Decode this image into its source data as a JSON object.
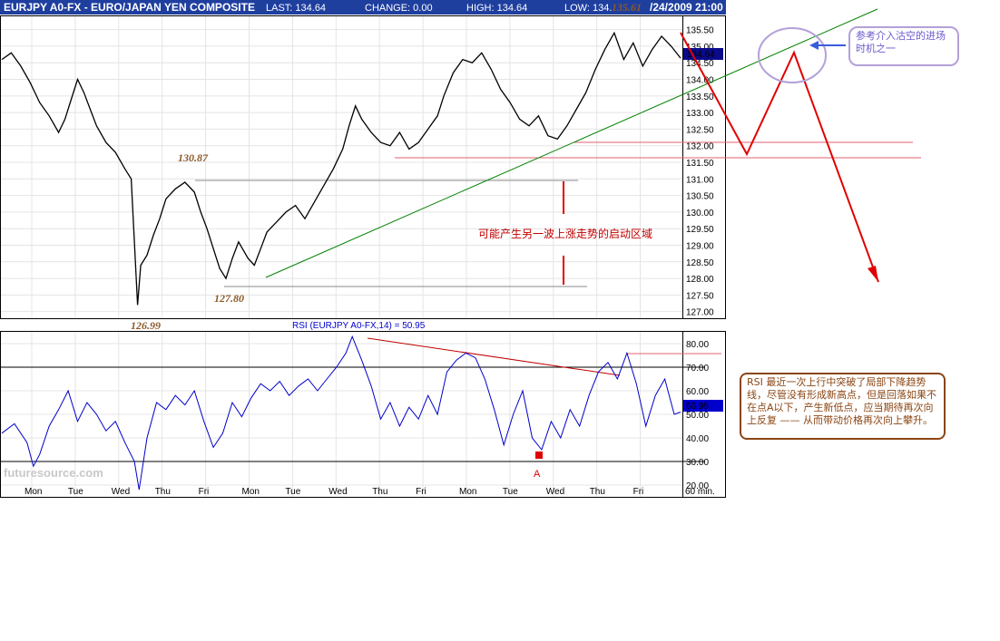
{
  "header": {
    "symbol": "EURJPY A0-FX - EURO/JAPAN YEN COMPOSITE",
    "last": "LAST: 134.64",
    "change": "CHANGE: 0.00",
    "high": "HIGH: 134.64",
    "low": "LOW: 134.",
    "peak": "135.61",
    "datetime": "/24/2009 21:00"
  },
  "price_panel": {
    "current_price": "134.64",
    "levels": {
      "high_label": "130.87",
      "mid_label": "127.80",
      "low_label": "126.99"
    },
    "note": "可能产生另一波上涨走势的启动区域"
  },
  "rsi_panel": {
    "title": "RSI (EURJPY A0-FX,14) = 50.95",
    "current_value": "50.95",
    "point_label": "A",
    "logo": "futuresource.com"
  },
  "annotations": {
    "rsi_note": "RSI 最近一次上行中突破了局部下降趋势线，尽管没有形成新高点，但是回落如果不在点A以下，产生新低点，应当期待再次向上反复 —— 从而带动价格再次向上攀升。",
    "entry_note": "参考介入沽空的进场时机之一"
  },
  "colors": {
    "header_bg": "#1f3f9f",
    "price_line": "#000000",
    "rsi_line": "#0000cc",
    "trend_line": "#008000",
    "resistance_line": "#e06070",
    "forecast_line": "#e00000",
    "current_badge": "#0a0a8a"
  },
  "chart_data": [
    {
      "type": "line",
      "name": "price",
      "x": [
        "Mon",
        "Tue",
        "Wed",
        "Thu",
        "Fri",
        "Mon",
        "Tue",
        "Wed",
        "Thu",
        "Fri",
        "Mon",
        "Tue",
        "Wed",
        "Thu",
        "Fri"
      ],
      "ylim": [
        126.8,
        135.9
      ],
      "yticks": [
        "135.50",
        "135.00",
        "134.50",
        "134.00",
        "133.50",
        "133.00",
        "132.50",
        "132.00",
        "131.50",
        "131.00",
        "130.50",
        "130.00",
        "129.50",
        "129.00",
        "128.50",
        "128.00",
        "127.50",
        "127.00"
      ],
      "points": [
        [
          0,
          134.6
        ],
        [
          0.3,
          134.8
        ],
        [
          0.6,
          134.4
        ],
        [
          0.9,
          133.9
        ],
        [
          1.2,
          133.3
        ],
        [
          1.5,
          132.9
        ],
        [
          1.8,
          132.4
        ],
        [
          2.0,
          132.8
        ],
        [
          2.2,
          133.4
        ],
        [
          2.4,
          134.0
        ],
        [
          2.6,
          133.6
        ],
        [
          2.8,
          133.1
        ],
        [
          3.0,
          132.6
        ],
        [
          3.3,
          132.1
        ],
        [
          3.6,
          131.8
        ],
        [
          3.9,
          131.3
        ],
        [
          4.1,
          131.0
        ],
        [
          4.3,
          127.2
        ],
        [
          4.4,
          128.4
        ],
        [
          4.6,
          128.7
        ],
        [
          4.8,
          129.3
        ],
        [
          5.0,
          129.8
        ],
        [
          5.2,
          130.4
        ],
        [
          5.5,
          130.7
        ],
        [
          5.8,
          130.9
        ],
        [
          6.1,
          130.6
        ],
        [
          6.3,
          130.0
        ],
        [
          6.5,
          129.5
        ],
        [
          6.7,
          128.9
        ],
        [
          6.9,
          128.3
        ],
        [
          7.1,
          128.0
        ],
        [
          7.3,
          128.6
        ],
        [
          7.5,
          129.1
        ],
        [
          7.8,
          128.6
        ],
        [
          8.0,
          128.4
        ],
        [
          8.2,
          128.9
        ],
        [
          8.4,
          129.4
        ],
        [
          8.7,
          129.7
        ],
        [
          9.0,
          130.0
        ],
        [
          9.3,
          130.2
        ],
        [
          9.6,
          129.8
        ],
        [
          9.9,
          130.3
        ],
        [
          10.2,
          130.8
        ],
        [
          10.5,
          131.3
        ],
        [
          10.8,
          131.9
        ],
        [
          11.0,
          132.6
        ],
        [
          11.2,
          133.2
        ],
        [
          11.4,
          132.8
        ],
        [
          11.7,
          132.4
        ],
        [
          12.0,
          132.1
        ],
        [
          12.3,
          132.0
        ],
        [
          12.6,
          132.4
        ],
        [
          12.9,
          131.9
        ],
        [
          13.2,
          132.1
        ],
        [
          13.5,
          132.5
        ],
        [
          13.8,
          132.9
        ],
        [
          14.0,
          133.5
        ],
        [
          14.3,
          134.2
        ],
        [
          14.6,
          134.6
        ],
        [
          14.9,
          134.5
        ],
        [
          15.2,
          134.8
        ],
        [
          15.5,
          134.3
        ],
        [
          15.8,
          133.7
        ],
        [
          16.1,
          133.3
        ],
        [
          16.4,
          132.8
        ],
        [
          16.7,
          132.6
        ],
        [
          17.0,
          132.9
        ],
        [
          17.3,
          132.3
        ],
        [
          17.6,
          132.2
        ],
        [
          17.9,
          132.6
        ],
        [
          18.2,
          133.1
        ],
        [
          18.5,
          133.6
        ],
        [
          18.8,
          134.3
        ],
        [
          19.1,
          134.9
        ],
        [
          19.4,
          135.4
        ],
        [
          19.7,
          134.6
        ],
        [
          20.0,
          135.1
        ],
        [
          20.3,
          134.4
        ],
        [
          20.6,
          134.9
        ],
        [
          20.9,
          135.3
        ],
        [
          21.2,
          135.0
        ],
        [
          21.5,
          134.64
        ]
      ]
    },
    {
      "type": "line",
      "name": "rsi",
      "ylim": [
        15,
        85
      ],
      "yticks": [
        "80.00",
        "70.00",
        "60.00",
        "50.00",
        "40.00",
        "30.00",
        "20.00"
      ],
      "points": [
        [
          0,
          42
        ],
        [
          0.4,
          46
        ],
        [
          0.8,
          38
        ],
        [
          1.0,
          28
        ],
        [
          1.2,
          33
        ],
        [
          1.5,
          45
        ],
        [
          1.8,
          52
        ],
        [
          2.1,
          60
        ],
        [
          2.4,
          47
        ],
        [
          2.7,
          55
        ],
        [
          3.0,
          50
        ],
        [
          3.3,
          43
        ],
        [
          3.6,
          47
        ],
        [
          3.9,
          38
        ],
        [
          4.2,
          30
        ],
        [
          4.35,
          18
        ],
        [
          4.6,
          40
        ],
        [
          4.9,
          55
        ],
        [
          5.2,
          52
        ],
        [
          5.5,
          58
        ],
        [
          5.8,
          54
        ],
        [
          6.1,
          60
        ],
        [
          6.4,
          47
        ],
        [
          6.7,
          36
        ],
        [
          7.0,
          42
        ],
        [
          7.3,
          55
        ],
        [
          7.6,
          49
        ],
        [
          7.9,
          57
        ],
        [
          8.2,
          63
        ],
        [
          8.5,
          60
        ],
        [
          8.8,
          64
        ],
        [
          9.1,
          58
        ],
        [
          9.4,
          62
        ],
        [
          9.7,
          65
        ],
        [
          10.0,
          60
        ],
        [
          10.3,
          65
        ],
        [
          10.6,
          70
        ],
        [
          10.9,
          76
        ],
        [
          11.1,
          83
        ],
        [
          11.4,
          73
        ],
        [
          11.7,
          62
        ],
        [
          12.0,
          48
        ],
        [
          12.3,
          55
        ],
        [
          12.6,
          45
        ],
        [
          12.9,
          53
        ],
        [
          13.2,
          48
        ],
        [
          13.5,
          58
        ],
        [
          13.8,
          50
        ],
        [
          14.1,
          68
        ],
        [
          14.4,
          73
        ],
        [
          14.7,
          76
        ],
        [
          15.0,
          74
        ],
        [
          15.3,
          65
        ],
        [
          15.6,
          52
        ],
        [
          15.9,
          37
        ],
        [
          16.2,
          50
        ],
        [
          16.5,
          60
        ],
        [
          16.8,
          40
        ],
        [
          17.1,
          35
        ],
        [
          17.4,
          47
        ],
        [
          17.7,
          40
        ],
        [
          18.0,
          52
        ],
        [
          18.3,
          45
        ],
        [
          18.6,
          58
        ],
        [
          18.9,
          68
        ],
        [
          19.2,
          72
        ],
        [
          19.5,
          65
        ],
        [
          19.8,
          76
        ],
        [
          20.1,
          63
        ],
        [
          20.4,
          45
        ],
        [
          20.7,
          58
        ],
        [
          21.0,
          65
        ],
        [
          21.3,
          50
        ],
        [
          21.5,
          50.95
        ]
      ]
    }
  ]
}
